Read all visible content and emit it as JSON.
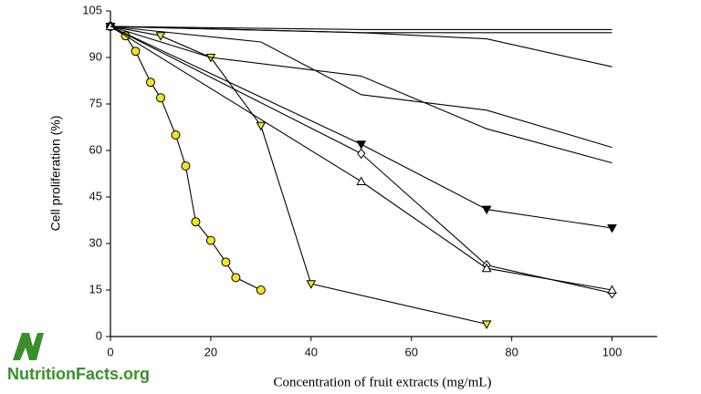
{
  "chart_data": {
    "type": "line",
    "xlabel": "Concentration of fruit extracts (mg/mL)",
    "ylabel": "Cell proliferation (%)",
    "xlim": [
      0,
      109
    ],
    "ylim": [
      0,
      105
    ],
    "xticks": [
      0,
      20,
      40,
      60,
      80,
      100
    ],
    "yticks": [
      0,
      15,
      30,
      45,
      60,
      75,
      90,
      105
    ],
    "series": [
      {
        "color": "#f2e51c",
        "marker": "circle",
        "x": [
          0,
          3,
          5,
          8,
          10,
          13,
          15,
          17,
          20,
          23,
          25,
          30
        ],
        "values": [
          100,
          97,
          92,
          82,
          77,
          65,
          55,
          37,
          31,
          24,
          19,
          15
        ]
      },
      {
        "color": "#f2e51c",
        "marker": "triangle-down",
        "x": [
          0,
          10,
          20,
          30,
          40,
          75
        ],
        "values": [
          100,
          97,
          90,
          68,
          17,
          4
        ]
      },
      {
        "color": "#000000",
        "marker": "triangle-down",
        "x": [
          0,
          50,
          75,
          100
        ],
        "values": [
          100,
          62,
          41,
          35
        ]
      },
      {
        "color": "#ffffff",
        "marker": "diamond",
        "x": [
          0,
          50,
          75,
          100
        ],
        "values": [
          100,
          59,
          23,
          14
        ]
      },
      {
        "color": "#ffffff",
        "marker": "triangle-up",
        "x": [
          0,
          50,
          75,
          100
        ],
        "values": [
          100,
          50,
          22,
          15
        ]
      },
      {
        "color": "#000000",
        "marker": "none",
        "x": [
          0,
          50,
          75,
          100
        ],
        "values": [
          100,
          99,
          99,
          99
        ]
      },
      {
        "color": "#000000",
        "marker": "none",
        "x": [
          0,
          50,
          75,
          100
        ],
        "values": [
          100,
          98,
          98,
          98
        ]
      },
      {
        "color": "#000000",
        "marker": "none",
        "x": [
          0,
          50,
          75,
          100
        ],
        "values": [
          100,
          98,
          96,
          87
        ]
      },
      {
        "color": "#000000",
        "marker": "none",
        "x": [
          0,
          30,
          50,
          75,
          100
        ],
        "values": [
          100,
          95,
          78,
          73,
          61
        ]
      },
      {
        "color": "#000000",
        "marker": "none",
        "x": [
          0,
          20,
          50,
          75,
          100
        ],
        "values": [
          100,
          90,
          84,
          67,
          56
        ]
      }
    ]
  },
  "logo": "NutritionFacts.org"
}
